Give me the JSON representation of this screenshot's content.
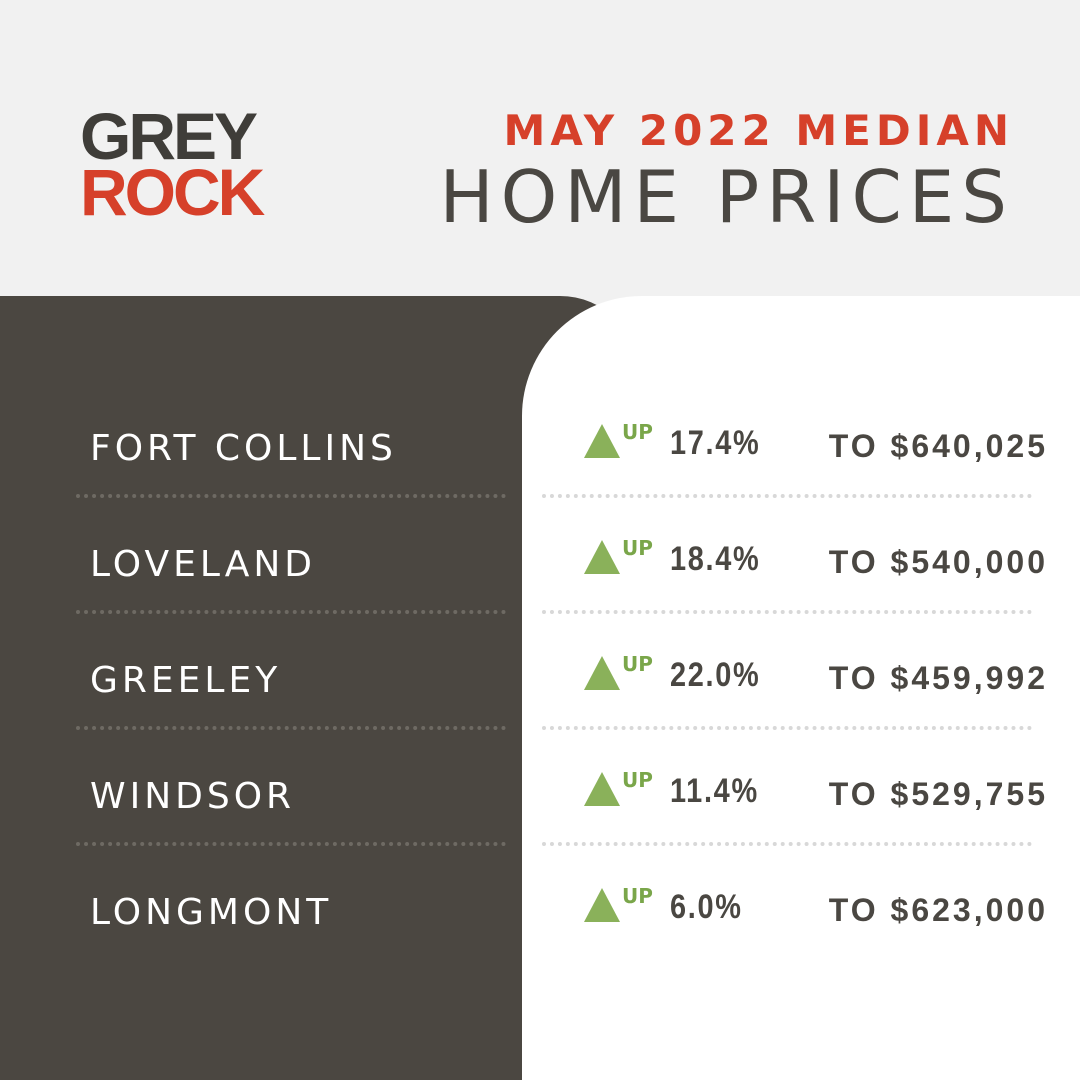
{
  "logo": {
    "line1": "GREY",
    "line2": "ROCK"
  },
  "header": {
    "subtitle": "MAY 2022 MEDIAN",
    "title": "HOME PRICES"
  },
  "colors": {
    "accent_red": "#d6402a",
    "dark": "#4b4741",
    "up_green": "#8ab15a"
  },
  "rows": [
    {
      "city": "FORT COLLINS",
      "direction": "UP",
      "change": "17.4%",
      "price": "TO $640,025",
      "icon": "up-triangle-icon"
    },
    {
      "city": "LOVELAND",
      "direction": "UP",
      "change": "18.4%",
      "price": "TO $540,000",
      "icon": "up-triangle-icon"
    },
    {
      "city": "GREELEY",
      "direction": "UP",
      "change": "22.0%",
      "price": "TO $459,992",
      "icon": "up-triangle-icon"
    },
    {
      "city": "WINDSOR",
      "direction": "UP",
      "change": "11.4%",
      "price": "TO $529,755",
      "icon": "up-triangle-icon"
    },
    {
      "city": "LONGMONT",
      "direction": "UP",
      "change": "6.0%",
      "price": "TO $623,000",
      "icon": "up-triangle-icon"
    }
  ]
}
